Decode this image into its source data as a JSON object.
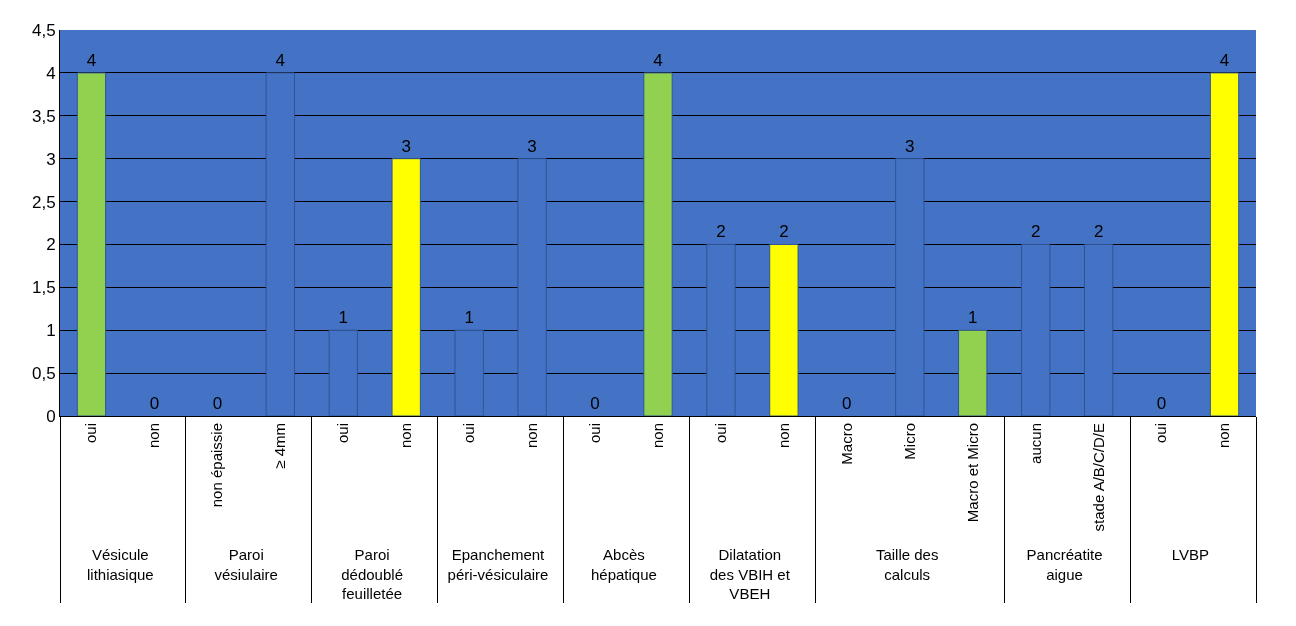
{
  "chart_data": {
    "type": "bar",
    "categories": [
      [
        "Vésicule lithiasique",
        "oui"
      ],
      [
        null,
        "non"
      ],
      [
        "Paroi vésiulaire",
        "non épaissie"
      ],
      [
        null,
        "≥ 4mm"
      ],
      [
        "Paroi dédoublé feuilletée",
        "oui"
      ],
      [
        null,
        "non"
      ],
      [
        "Epanchement péri-vésiculaire",
        "oui"
      ],
      [
        null,
        "non"
      ],
      [
        "Abcès hépatique",
        "oui"
      ],
      [
        null,
        "non"
      ],
      [
        "Dilatation des VBIH et VBEH",
        "oui"
      ],
      [
        null,
        "non"
      ],
      [
        "Taille des calculs",
        "Macro"
      ],
      [
        null,
        "Micro"
      ],
      [
        null,
        "Macro et Micro"
      ],
      [
        "Pancréatite aigue",
        "aucun"
      ],
      [
        null,
        "stade A/B/C/D/E"
      ],
      [
        "LVBP",
        "oui"
      ],
      [
        null,
        "non"
      ]
    ],
    "values": [
      4,
      0,
      0,
      4,
      1,
      3,
      1,
      3,
      0,
      4,
      2,
      2,
      0,
      3,
      1,
      2,
      2,
      0,
      4
    ],
    "colors": [
      "#92d050",
      "#4472c4",
      "#4472c4",
      "#4472c4",
      "#4472c4",
      "#ffff00",
      "#4472c4",
      "#4472c4",
      "#4472c4",
      "#92d050",
      "#4472c4",
      "#ffff00",
      "#4472c4",
      "#4472c4",
      "#92d050",
      "#4472c4",
      "#4472c4",
      "#4472c4",
      "#ffff00"
    ],
    "ylim": [
      0,
      4.5
    ],
    "yticks": [
      0,
      {
        "value": 0.5,
        "label": "0,5"
      },
      1,
      {
        "value": 1.5,
        "label": "1,5"
      },
      2,
      {
        "value": 2.5,
        "label": "2,5"
      },
      3,
      {
        "value": 3.5,
        "label": "3,5"
      },
      4,
      {
        "value": 4.5,
        "label": "4,5"
      }
    ],
    "grid": "y",
    "data_labels": true,
    "legend": false
  }
}
